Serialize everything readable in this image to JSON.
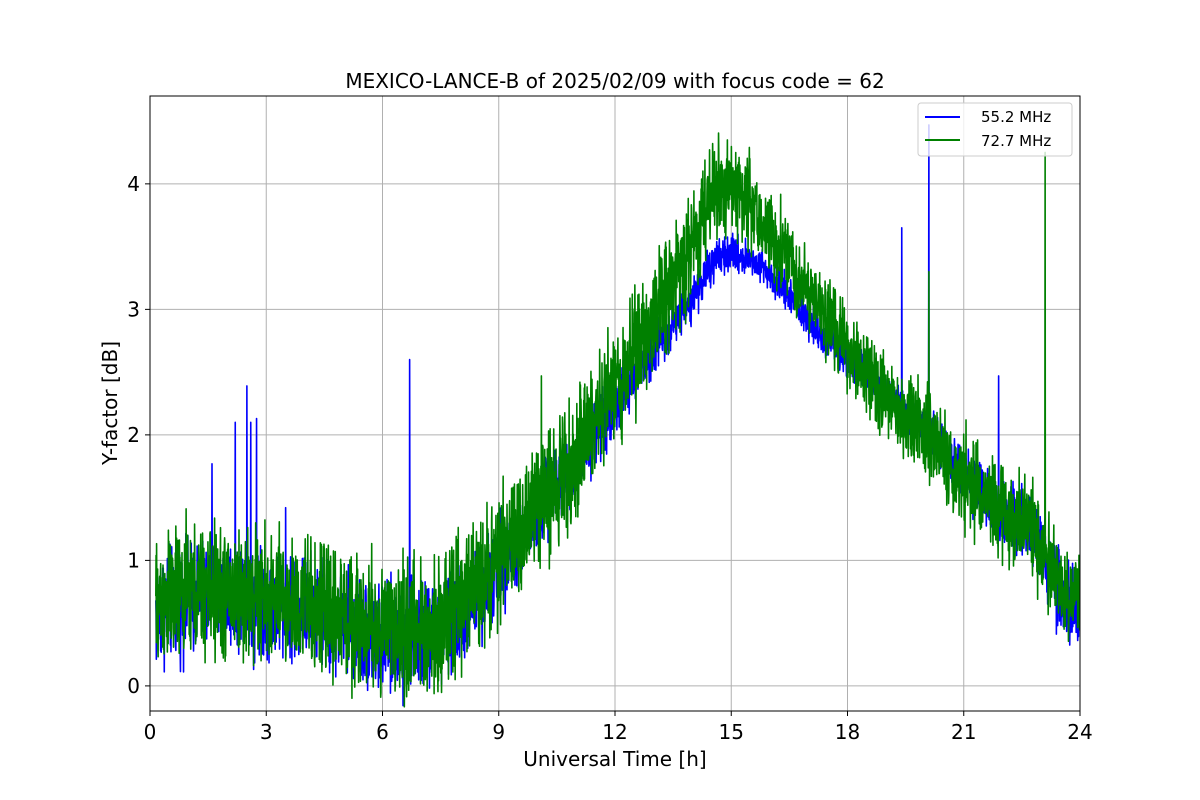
{
  "chart_data": {
    "type": "line",
    "title": "MEXICO-LANCE-B of 2025/02/09 with focus code = 62",
    "xlabel": "Universal Time [h]",
    "ylabel": "Y-factor [dB]",
    "xlim": [
      0,
      24
    ],
    "ylim": [
      -0.2,
      4.7
    ],
    "xticks": [
      0,
      3,
      6,
      9,
      12,
      15,
      18,
      21,
      24
    ],
    "yticks": [
      0,
      1,
      2,
      3,
      4
    ],
    "grid": true,
    "legend_position": "top-right",
    "series": [
      {
        "name": "55.2 MHz",
        "color": "#0000ff",
        "baseline_x": [
          0.15,
          0.5,
          1,
          2,
          3,
          4,
          5,
          6,
          7,
          7.7,
          8.5,
          9,
          10,
          11,
          12,
          13,
          14,
          14.5,
          15,
          15.5,
          16,
          17,
          18,
          19,
          20,
          21,
          22,
          22.7,
          23.2,
          23.6,
          24
        ],
        "baseline_y": [
          0.6,
          0.65,
          0.7,
          0.75,
          0.65,
          0.62,
          0.5,
          0.35,
          0.38,
          0.45,
          0.75,
          0.95,
          1.35,
          1.8,
          2.25,
          2.7,
          3.1,
          3.35,
          3.45,
          3.4,
          3.3,
          2.9,
          2.6,
          2.35,
          2.05,
          1.7,
          1.35,
          1.25,
          0.95,
          0.65,
          0.55
        ],
        "noise_y": [
          0.28,
          0.25,
          0.25,
          0.25,
          0.24,
          0.24,
          0.24,
          0.25,
          0.25,
          0.24,
          0.22,
          0.2,
          0.18,
          0.16,
          0.14,
          0.12,
          0.1,
          0.09,
          0.08,
          0.08,
          0.08,
          0.08,
          0.08,
          0.08,
          0.1,
          0.12,
          0.14,
          0.16,
          0.18,
          0.18,
          0.18
        ],
        "spikes_x": [
          1.6,
          2.2,
          2.5,
          2.6,
          2.75,
          3.5,
          6.7,
          19.4,
          20.1,
          21.9
        ],
        "spikes_y": [
          1.77,
          2.1,
          2.39,
          2.1,
          2.13,
          1.42,
          2.6,
          3.65,
          4.47,
          2.47
        ]
      },
      {
        "name": "72.7 MHz",
        "color": "#008000",
        "baseline_x": [
          0.15,
          0.5,
          1,
          2,
          3,
          4,
          5,
          6,
          7,
          7.7,
          8.5,
          9,
          10,
          11,
          12,
          13,
          14,
          14.5,
          15,
          15.5,
          16,
          17,
          18,
          19,
          20,
          21,
          22,
          22.7,
          23.2,
          23.6,
          24
        ],
        "baseline_y": [
          0.65,
          0.7,
          0.75,
          0.75,
          0.7,
          0.65,
          0.55,
          0.45,
          0.45,
          0.55,
          0.85,
          1.0,
          1.45,
          1.85,
          2.4,
          2.95,
          3.5,
          3.95,
          4.0,
          3.85,
          3.6,
          3.15,
          2.65,
          2.3,
          2.0,
          1.65,
          1.4,
          1.25,
          0.95,
          0.75,
          0.7
        ],
        "noise_y": [
          0.3,
          0.3,
          0.3,
          0.3,
          0.3,
          0.3,
          0.3,
          0.3,
          0.3,
          0.3,
          0.28,
          0.28,
          0.28,
          0.28,
          0.26,
          0.26,
          0.24,
          0.22,
          0.22,
          0.22,
          0.2,
          0.18,
          0.18,
          0.18,
          0.2,
          0.22,
          0.22,
          0.22,
          0.2,
          0.2,
          0.2
        ],
        "spikes_x": [
          10.1,
          14.9,
          20.1,
          23.1
        ],
        "spikes_y": [
          2.47,
          4.35,
          3.3,
          4.25
        ]
      }
    ]
  }
}
